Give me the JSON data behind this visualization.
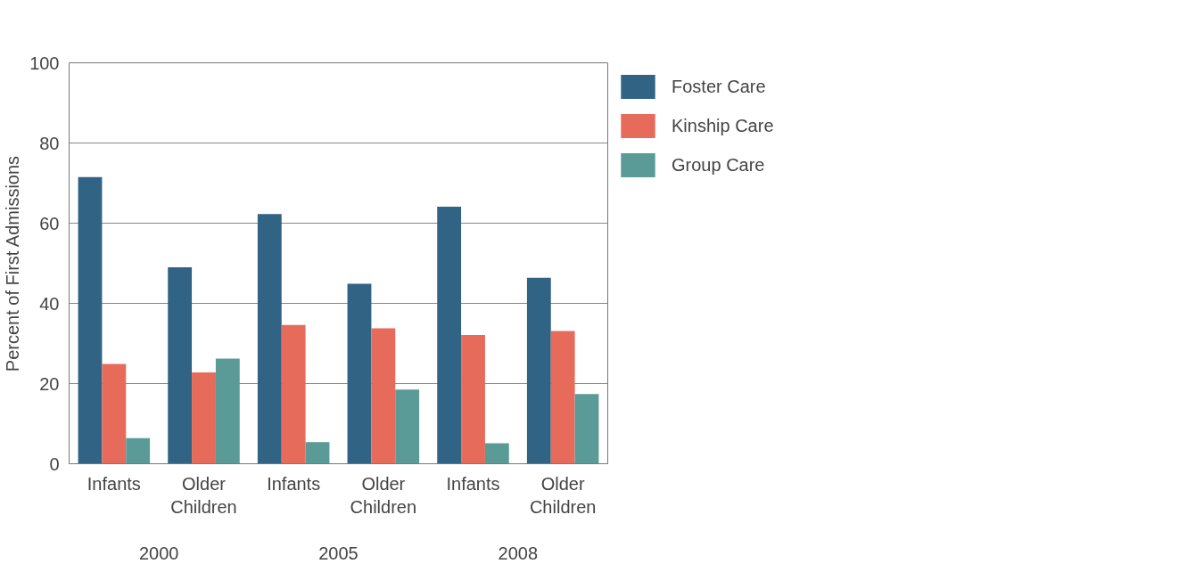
{
  "chart_data": {
    "type": "bar",
    "ylabel": "Percent of First Admissions",
    "categories": [
      "Infants",
      "Older Children",
      "Infants",
      "Older Children",
      "Infants",
      "Older Children"
    ],
    "series": [
      {
        "name": "Foster Care",
        "color": "#306384",
        "values": [
          71.5,
          49.0,
          62.3,
          44.9,
          64.1,
          46.4
        ]
      },
      {
        "name": "Kinship Care",
        "color": "#e66b5b",
        "values": [
          24.9,
          22.8,
          34.6,
          33.8,
          32.1,
          33.1
        ]
      },
      {
        "name": "Group Care",
        "color": "#5a9b97",
        "values": [
          6.4,
          26.2,
          5.4,
          18.5,
          5.1,
          17.4
        ]
      }
    ],
    "annotations": [
      "2000",
      "2005",
      "2008"
    ],
    "ylim": [
      0,
      100
    ],
    "yticks": [
      0,
      20,
      40,
      60,
      80,
      100
    ],
    "grid": "y",
    "legend": "top right"
  }
}
